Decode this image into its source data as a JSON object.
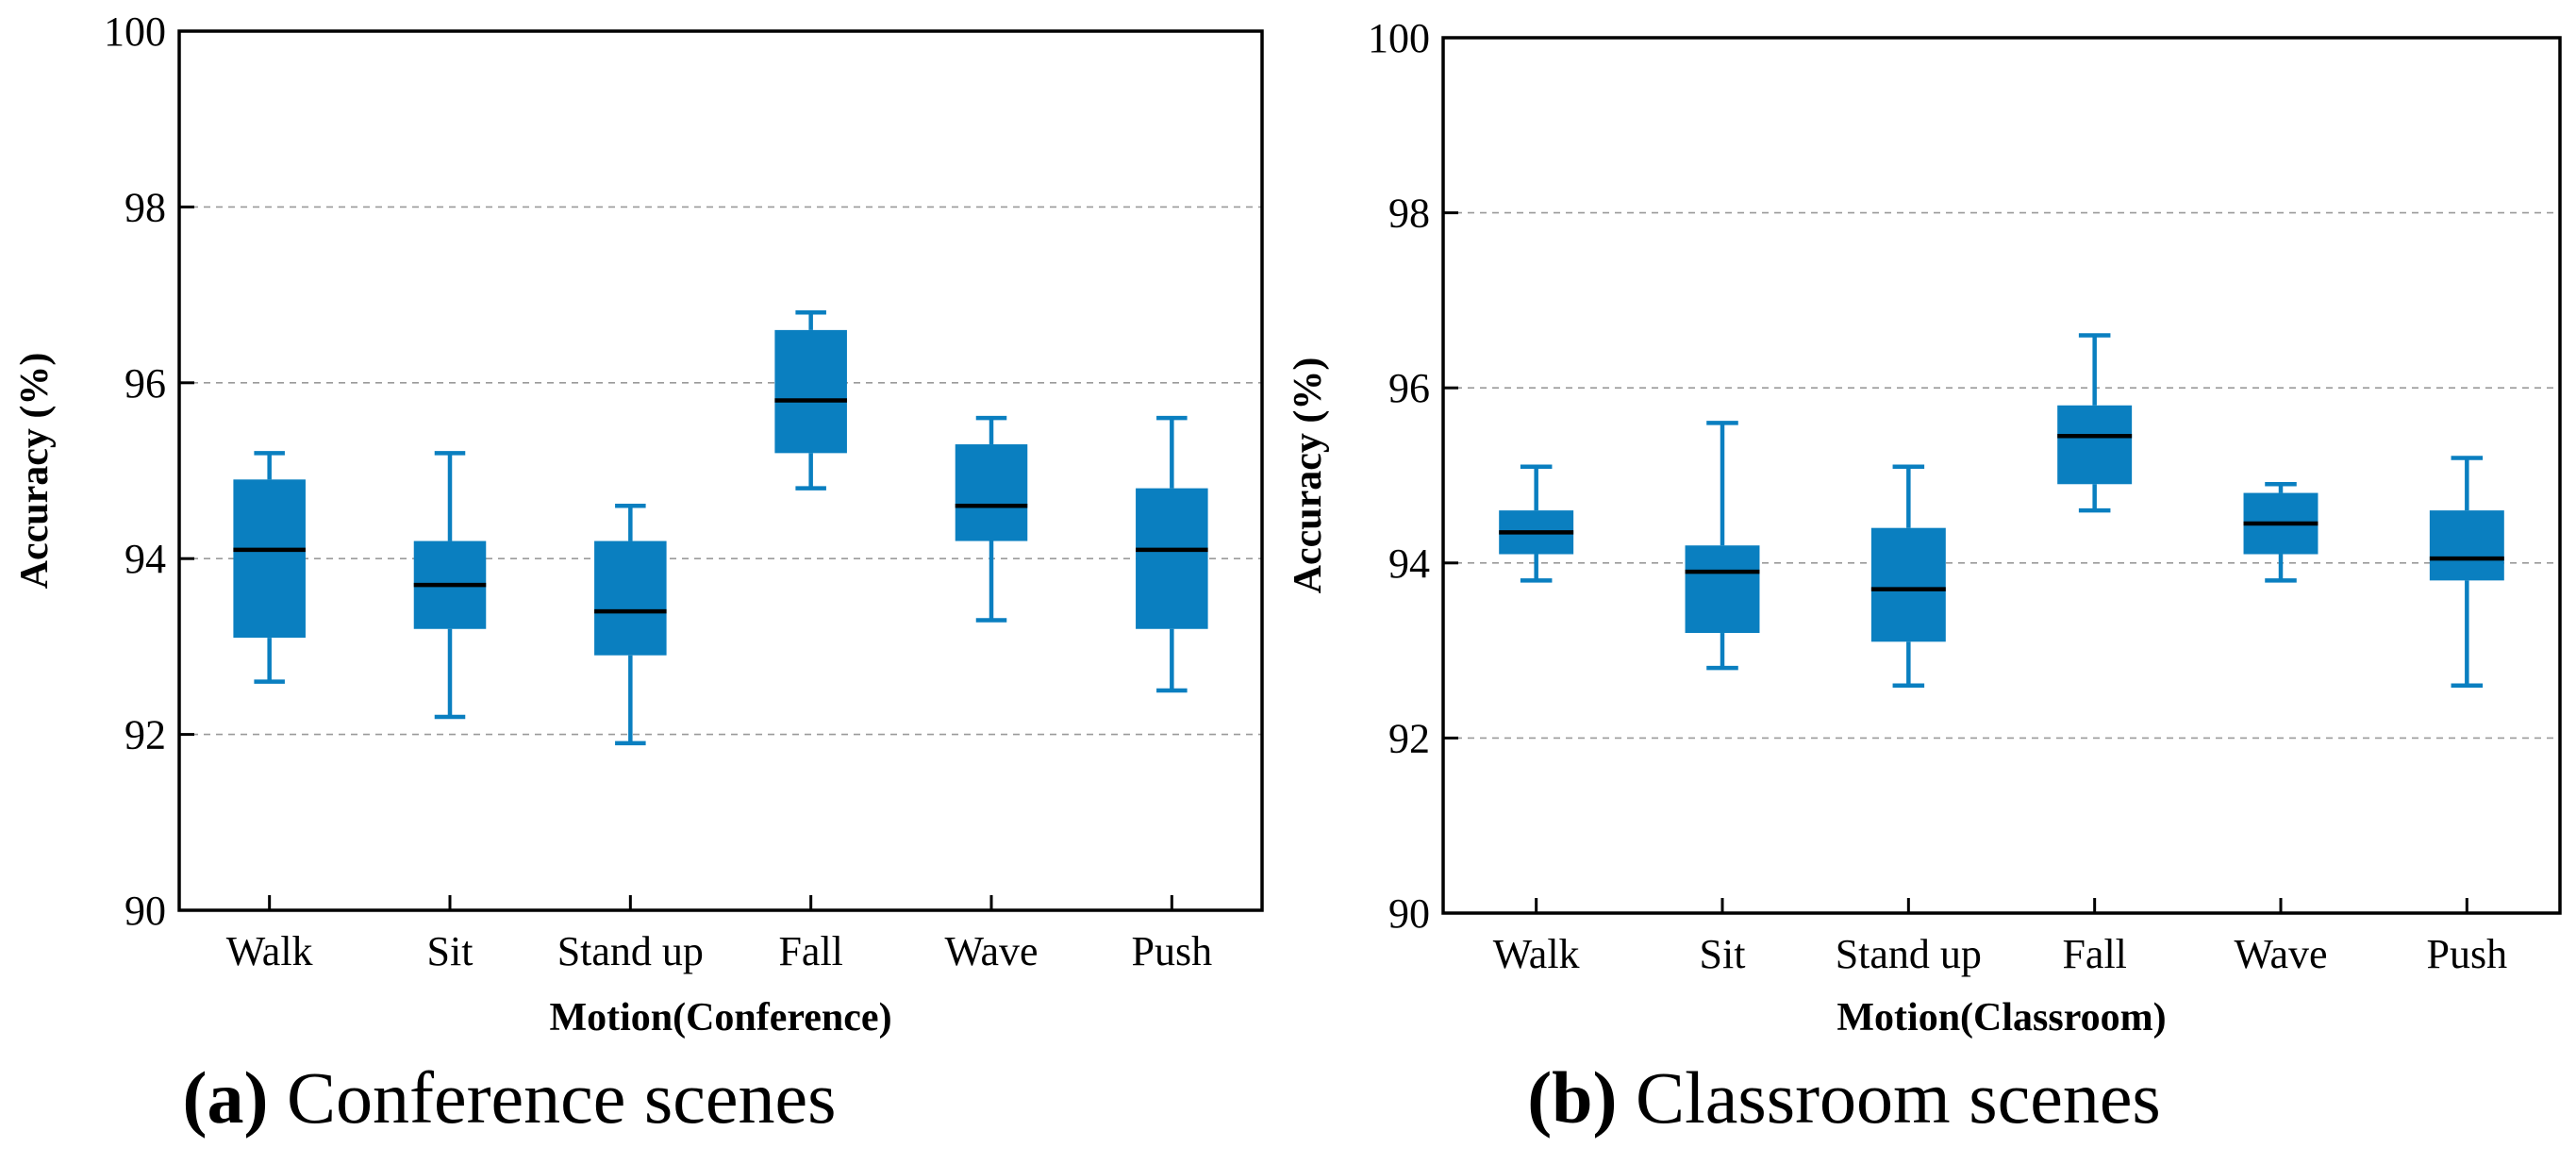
{
  "colors": {
    "box_fill": "#0a7fc0",
    "whisker": "#0a7fc0",
    "median": "#000000"
  },
  "captions": [
    {
      "letter": "(a)",
      "text": " Conference scenes"
    },
    {
      "letter": "(b)",
      "text": " Classroom scenes"
    }
  ],
  "chart_data": [
    {
      "type": "box",
      "xlabel": "Motion(Conference)",
      "ylabel": "Accuracy (%)",
      "ylim": [
        90,
        100
      ],
      "yticks": [
        90,
        92,
        94,
        96,
        98,
        100
      ],
      "grid": "horizontal dashed",
      "categories": [
        "Walk",
        "Sit",
        "Stand up",
        "Fall",
        "Wave",
        "Push"
      ],
      "boxes": [
        {
          "min": 92.6,
          "q1": 93.1,
          "median": 94.1,
          "q3": 94.9,
          "max": 95.2
        },
        {
          "min": 92.2,
          "q1": 93.2,
          "median": 93.7,
          "q3": 94.2,
          "max": 95.2
        },
        {
          "min": 91.9,
          "q1": 92.9,
          "median": 93.4,
          "q3": 94.2,
          "max": 94.6
        },
        {
          "min": 94.8,
          "q1": 95.2,
          "median": 95.8,
          "q3": 96.6,
          "max": 96.8
        },
        {
          "min": 93.3,
          "q1": 94.2,
          "median": 94.6,
          "q3": 95.3,
          "max": 95.6
        },
        {
          "min": 92.5,
          "q1": 93.2,
          "median": 94.1,
          "q3": 94.8,
          "max": 95.6
        }
      ]
    },
    {
      "type": "box",
      "xlabel": "Motion(Classroom)",
      "ylabel": "Accuracy (%)",
      "ylim": [
        90,
        100
      ],
      "yticks": [
        90,
        92,
        94,
        96,
        98,
        100
      ],
      "grid": "horizontal dashed",
      "categories": [
        "Walk",
        "Sit",
        "Stand up",
        "Fall",
        "Wave",
        "Push"
      ],
      "boxes": [
        {
          "min": 93.8,
          "q1": 94.1,
          "median": 94.35,
          "q3": 94.6,
          "max": 95.1
        },
        {
          "min": 92.8,
          "q1": 93.2,
          "median": 93.9,
          "q3": 94.2,
          "max": 95.6
        },
        {
          "min": 92.6,
          "q1": 93.1,
          "median": 93.7,
          "q3": 94.4,
          "max": 95.1
        },
        {
          "min": 94.6,
          "q1": 94.9,
          "median": 95.45,
          "q3": 95.8,
          "max": 96.6
        },
        {
          "min": 93.8,
          "q1": 94.1,
          "median": 94.45,
          "q3": 94.8,
          "max": 94.9
        },
        {
          "min": 92.6,
          "q1": 93.8,
          "median": 94.05,
          "q3": 94.6,
          "max": 95.2
        }
      ]
    }
  ]
}
